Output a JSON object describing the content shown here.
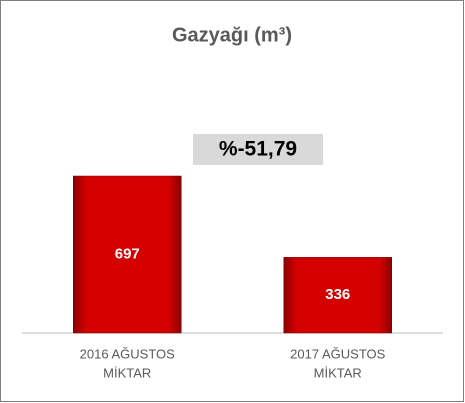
{
  "chart_data": {
    "type": "bar",
    "title": "Gazyağı (m³)",
    "categories": [
      [
        "2016 AĞUSTOS",
        "MİKTAR"
      ],
      [
        "2017 AĞUSTOS",
        "MİKTAR"
      ]
    ],
    "values": [
      697,
      336
    ],
    "color": "#c00000",
    "annotation": "%-51,79"
  }
}
